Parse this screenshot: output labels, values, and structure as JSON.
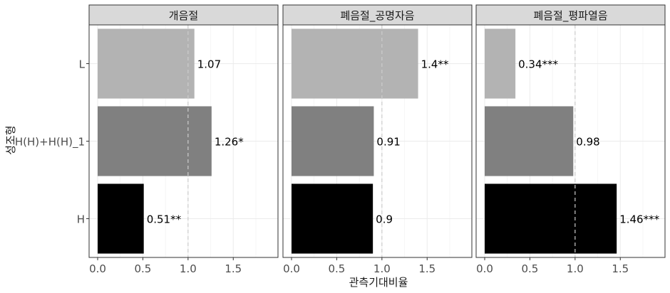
{
  "chart_data": {
    "type": "bar",
    "orientation": "horizontal",
    "xlabel": "관측기대비율",
    "ylabel": "성조형",
    "categories": [
      "L",
      "H(H)+H(H)_1",
      "H"
    ],
    "xlim": [
      0,
      1.9
    ],
    "xticks": [
      "0.0",
      "0.5",
      "1.0",
      "1.5"
    ],
    "xtick_values": [
      0,
      0.5,
      1.0,
      1.5
    ],
    "reference_line": 1.0,
    "grid": true,
    "category_colors": {
      "L": "#b3b3b3",
      "H(H)+H(H)_1": "#808080",
      "H": "#000000"
    },
    "panels": [
      {
        "title": "개음절",
        "values": [
          1.07,
          1.26,
          0.51
        ],
        "labels": [
          "1.07",
          "1.26*",
          "0.51**"
        ]
      },
      {
        "title": "폐음절_공명자음",
        "values": [
          1.4,
          0.91,
          0.9
        ],
        "labels": [
          "1.4**",
          "0.91",
          "0.9"
        ]
      },
      {
        "title": "폐음절_평파열음",
        "values": [
          0.34,
          0.98,
          1.46
        ],
        "labels": [
          "0.34***",
          "0.98",
          "1.46***"
        ]
      }
    ]
  }
}
